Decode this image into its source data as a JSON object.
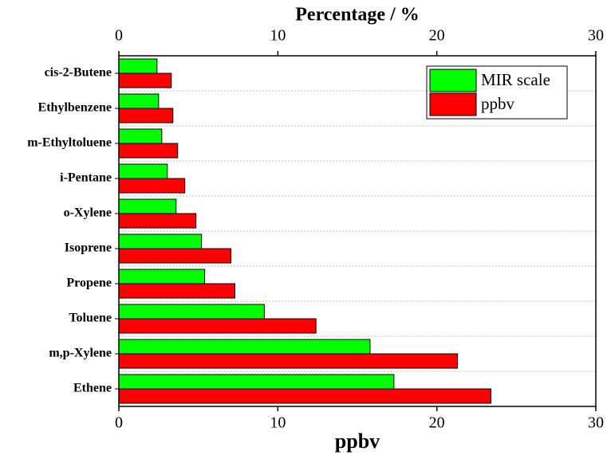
{
  "chart_data": {
    "type": "bar",
    "orientation": "horizontal",
    "xlabel": "ppbv",
    "x2label": "Percentage / %",
    "categories": [
      "cis-2-Butene",
      "Ethylbenzene",
      "m-Ethyltoluene",
      "i-Pentane",
      "o-Xylene",
      "Isoprene",
      "Propene",
      "Toluene",
      "m,p-Xylene",
      "Ethene"
    ],
    "series": [
      {
        "name": "MIR scale",
        "color": "#00ff00",
        "values": [
          2.4,
          2.5,
          2.7,
          3.05,
          3.6,
          5.2,
          5.4,
          9.15,
          15.8,
          17.3
        ]
      },
      {
        "name": "ppbv",
        "color": "#ff0000",
        "values": [
          3.3,
          3.4,
          3.7,
          4.15,
          4.85,
          7.05,
          7.3,
          12.4,
          21.3,
          23.4
        ]
      }
    ],
    "xlim": [
      0,
      30
    ],
    "xticks": [
      0,
      10,
      20,
      30
    ],
    "x2lim": [
      0,
      30
    ],
    "x2ticks": [
      0,
      10,
      20,
      30
    ],
    "grid": true,
    "legend": "upper right"
  }
}
